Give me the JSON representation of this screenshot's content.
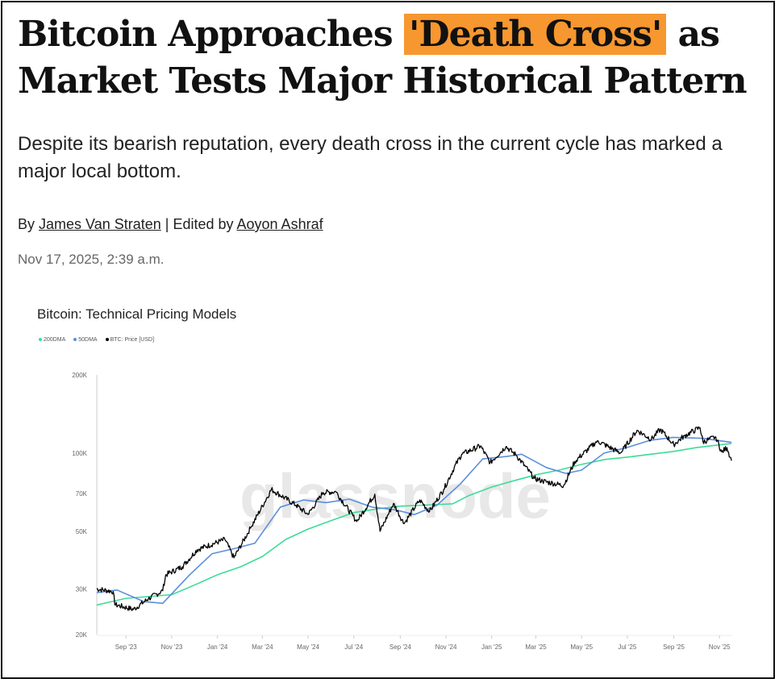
{
  "article": {
    "headline_pre": "Bitcoin Approaches ",
    "headline_highlight": "'Death Cross'",
    "headline_post": " as Market Tests Major Historical Pattern",
    "subheadline": "Despite its bearish reputation, every death cross in the current cycle has marked a major local bottom.",
    "by_label": "By ",
    "author": "James Van Straten",
    "edited_label": " | Edited by ",
    "editor": "Aoyon Ashraf",
    "date": "Nov 17, 2025, 2:39 a.m."
  },
  "colors": {
    "highlight": "#f7972f",
    "dma200": "#3ddc97",
    "dma50": "#5b8fdc",
    "price": "#000000"
  },
  "chart_data": {
    "type": "line",
    "title": "Bitcoin: Technical Pricing Models",
    "watermark": "glassnode",
    "yscale": "log",
    "ylim": [
      20000,
      200000
    ],
    "yticks": [
      {
        "v": 20000,
        "label": "20K"
      },
      {
        "v": 30000,
        "label": "30K"
      },
      {
        "v": 50000,
        "label": "50K"
      },
      {
        "v": 70000,
        "label": "70K"
      },
      {
        "v": 100000,
        "label": "100K"
      },
      {
        "v": 200000,
        "label": "200K"
      }
    ],
    "xlim": [
      "2023-07-24",
      "2025-11-18"
    ],
    "xticks": [
      {
        "d": "2023-09-01",
        "label": "Sep '23"
      },
      {
        "d": "2023-11-01",
        "label": "Nov '23"
      },
      {
        "d": "2024-01-01",
        "label": "Jan '24"
      },
      {
        "d": "2024-03-01",
        "label": "Mar '24"
      },
      {
        "d": "2024-05-01",
        "label": "May '24"
      },
      {
        "d": "2024-07-01",
        "label": "Jul '24"
      },
      {
        "d": "2024-09-01",
        "label": "Sep '24"
      },
      {
        "d": "2024-11-01",
        "label": "Nov '24"
      },
      {
        "d": "2025-01-01",
        "label": "Jan '25"
      },
      {
        "d": "2025-03-01",
        "label": "Mar '25"
      },
      {
        "d": "2025-05-01",
        "label": "May '25"
      },
      {
        "d": "2025-07-01",
        "label": "Jul '25"
      },
      {
        "d": "2025-09-01",
        "label": "Sep '25"
      },
      {
        "d": "2025-11-01",
        "label": "Nov '25"
      }
    ],
    "legend_position": "top-left",
    "series": [
      {
        "name": "200DMA",
        "color": "#3ddc97",
        "points": [
          [
            "2023-07-24",
            26000
          ],
          [
            "2023-09-01",
            27600
          ],
          [
            "2023-11-01",
            28500
          ],
          [
            "2023-12-01",
            31000
          ],
          [
            "2024-01-01",
            34000
          ],
          [
            "2024-02-01",
            36500
          ],
          [
            "2024-03-01",
            40000
          ],
          [
            "2024-04-01",
            46500
          ],
          [
            "2024-05-01",
            51000
          ],
          [
            "2024-06-01",
            55000
          ],
          [
            "2024-07-01",
            59000
          ],
          [
            "2024-08-01",
            61000
          ],
          [
            "2024-09-01",
            62500
          ],
          [
            "2024-10-01",
            63000
          ],
          [
            "2024-11-10",
            63800
          ],
          [
            "2024-12-01",
            68500
          ],
          [
            "2025-01-01",
            74000
          ],
          [
            "2025-02-01",
            78500
          ],
          [
            "2025-03-01",
            82500
          ],
          [
            "2025-04-01",
            86000
          ],
          [
            "2025-05-01",
            90500
          ],
          [
            "2025-06-01",
            94500
          ],
          [
            "2025-07-01",
            96500
          ],
          [
            "2025-08-01",
            99000
          ],
          [
            "2025-09-01",
            101500
          ],
          [
            "2025-10-01",
            105000
          ],
          [
            "2025-11-17",
            109000
          ]
        ]
      },
      {
        "name": "50DMA",
        "color": "#5b8fdc",
        "points": [
          [
            "2023-07-24",
            29000
          ],
          [
            "2023-08-20",
            29700
          ],
          [
            "2023-09-25",
            26800
          ],
          [
            "2023-10-20",
            26400
          ],
          [
            "2023-11-25",
            34000
          ],
          [
            "2023-12-25",
            41000
          ],
          [
            "2024-01-25",
            43000
          ],
          [
            "2024-02-20",
            45000
          ],
          [
            "2024-03-25",
            62000
          ],
          [
            "2024-04-25",
            66000
          ],
          [
            "2024-05-25",
            64500
          ],
          [
            "2024-06-25",
            66500
          ],
          [
            "2024-07-25",
            62000
          ],
          [
            "2024-08-25",
            60500
          ],
          [
            "2024-09-20",
            58000
          ],
          [
            "2024-10-20",
            63000
          ],
          [
            "2024-11-20",
            76000
          ],
          [
            "2024-12-20",
            95000
          ],
          [
            "2025-01-20",
            97000
          ],
          [
            "2025-02-10",
            99000
          ],
          [
            "2025-03-15",
            88000
          ],
          [
            "2025-04-10",
            83500
          ],
          [
            "2025-05-01",
            86000
          ],
          [
            "2025-05-31",
            100000
          ],
          [
            "2025-06-30",
            105000
          ],
          [
            "2025-07-31",
            112000
          ],
          [
            "2025-08-31",
            115000
          ],
          [
            "2025-10-10",
            114000
          ],
          [
            "2025-11-17",
            110000
          ]
        ]
      },
      {
        "name": "BTC: Price [USD]",
        "color": "#000000",
        "points": [
          [
            "2023-07-24",
            30000
          ],
          [
            "2023-08-15",
            29300
          ],
          [
            "2023-08-17",
            26100
          ],
          [
            "2023-09-11",
            25000
          ],
          [
            "2023-10-01",
            27500
          ],
          [
            "2023-10-20",
            29500
          ],
          [
            "2023-10-24",
            34000
          ],
          [
            "2023-11-15",
            36500
          ],
          [
            "2023-12-05",
            42500
          ],
          [
            "2024-01-11",
            46500
          ],
          [
            "2024-01-23",
            39500
          ],
          [
            "2024-02-15",
            52000
          ],
          [
            "2024-03-13",
            72500
          ],
          [
            "2024-04-15",
            63000
          ],
          [
            "2024-05-01",
            58000
          ],
          [
            "2024-05-21",
            70500
          ],
          [
            "2024-06-07",
            71000
          ],
          [
            "2024-07-05",
            54500
          ],
          [
            "2024-07-29",
            69500
          ],
          [
            "2024-08-05",
            50000
          ],
          [
            "2024-08-23",
            64000
          ],
          [
            "2024-09-06",
            53500
          ],
          [
            "2024-09-27",
            66000
          ],
          [
            "2024-10-10",
            59500
          ],
          [
            "2024-10-29",
            72500
          ],
          [
            "2024-11-12",
            88000
          ],
          [
            "2024-11-22",
            99000
          ],
          [
            "2024-12-17",
            106500
          ],
          [
            "2024-12-30",
            92000
          ],
          [
            "2025-01-20",
            106000
          ],
          [
            "2025-02-03",
            98000
          ],
          [
            "2025-02-27",
            80000
          ],
          [
            "2025-03-10",
            78000
          ],
          [
            "2025-04-07",
            75000
          ],
          [
            "2025-04-22",
            93000
          ],
          [
            "2025-05-22",
            111500
          ],
          [
            "2025-06-22",
            100000
          ],
          [
            "2025-07-14",
            122500
          ],
          [
            "2025-08-02",
            113000
          ],
          [
            "2025-08-14",
            123500
          ],
          [
            "2025-09-01",
            108000
          ],
          [
            "2025-09-15",
            116500
          ],
          [
            "2025-10-06",
            125500
          ],
          [
            "2025-10-10",
            110500
          ],
          [
            "2025-10-27",
            115500
          ],
          [
            "2025-11-04",
            101000
          ],
          [
            "2025-11-11",
            105000
          ],
          [
            "2025-11-17",
            93500
          ]
        ]
      }
    ]
  }
}
